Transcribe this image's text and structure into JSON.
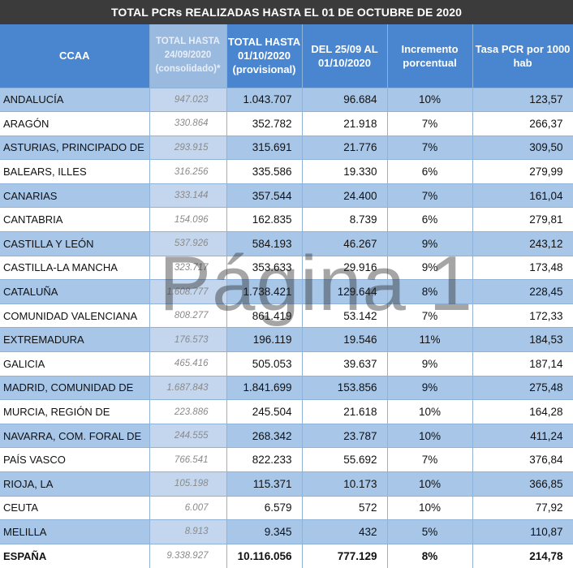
{
  "title": "TOTAL PCRs REALIZADAS HASTA EL 01 DE OCTUBRE DE 2020",
  "headers": {
    "ccaa": "CCAA",
    "consolidado": [
      "TOTAL HASTA",
      "24/09/2020",
      "(consolidado)*"
    ],
    "provisional": [
      "TOTAL  HASTA",
      "01/10/2020",
      "(provisional)"
    ],
    "periodo": [
      "DEL 25/09 AL",
      "01/10/2020"
    ],
    "incremento": [
      "Incremento",
      "porcentual"
    ],
    "tasa": [
      "Tasa PCR por 1000",
      "hab"
    ]
  },
  "rows": [
    {
      "ccaa": "ANDALUCÍA",
      "consolidado": "947.023",
      "provisional": "1.043.707",
      "periodo": "96.684",
      "incremento": "10%",
      "tasa": "123,57"
    },
    {
      "ccaa": "ARAGÓN",
      "consolidado": "330.864",
      "provisional": "352.782",
      "periodo": "21.918",
      "incremento": "7%",
      "tasa": "266,37"
    },
    {
      "ccaa": "ASTURIAS, PRINCIPADO DE",
      "consolidado": "293.915",
      "provisional": "315.691",
      "periodo": "21.776",
      "incremento": "7%",
      "tasa": "309,50"
    },
    {
      "ccaa": "BALEARS, ILLES",
      "consolidado": "316.256",
      "provisional": "335.586",
      "periodo": "19.330",
      "incremento": "6%",
      "tasa": "279,99"
    },
    {
      "ccaa": "CANARIAS",
      "consolidado": "333.144",
      "provisional": "357.544",
      "periodo": "24.400",
      "incremento": "7%",
      "tasa": "161,04"
    },
    {
      "ccaa": "CANTABRIA",
      "consolidado": "154.096",
      "provisional": "162.835",
      "periodo": "8.739",
      "incremento": "6%",
      "tasa": "279,81"
    },
    {
      "ccaa": "CASTILLA Y LEÓN",
      "consolidado": "537.926",
      "provisional": "584.193",
      "periodo": "46.267",
      "incremento": "9%",
      "tasa": "243,12"
    },
    {
      "ccaa": "CASTILLA-LA MANCHA",
      "consolidado": "323.717",
      "provisional": "353.633",
      "periodo": "29.916",
      "incremento": "9%",
      "tasa": "173,48"
    },
    {
      "ccaa": "CATALUÑA",
      "consolidado": "1.608.777",
      "provisional": "1.738.421",
      "periodo": "129.644",
      "incremento": "8%",
      "tasa": "228,45"
    },
    {
      "ccaa": "COMUNIDAD VALENCIANA",
      "consolidado": "808.277",
      "provisional": "861.419",
      "periodo": "53.142",
      "incremento": "7%",
      "tasa": "172,33"
    },
    {
      "ccaa": "EXTREMADURA",
      "consolidado": "176.573",
      "provisional": "196.119",
      "periodo": "19.546",
      "incremento": "11%",
      "tasa": "184,53"
    },
    {
      "ccaa": "GALICIA",
      "consolidado": "465.416",
      "provisional": "505.053",
      "periodo": "39.637",
      "incremento": "9%",
      "tasa": "187,14"
    },
    {
      "ccaa": "MADRID, COMUNIDAD DE",
      "consolidado": "1.687.843",
      "provisional": "1.841.699",
      "periodo": "153.856",
      "incremento": "9%",
      "tasa": "275,48"
    },
    {
      "ccaa": "MURCIA, REGIÓN DE",
      "consolidado": "223.886",
      "provisional": "245.504",
      "periodo": "21.618",
      "incremento": "10%",
      "tasa": "164,28"
    },
    {
      "ccaa": "NAVARRA, COM. FORAL DE",
      "consolidado": "244.555",
      "provisional": "268.342",
      "periodo": "23.787",
      "incremento": "10%",
      "tasa": "411,24"
    },
    {
      "ccaa": "PAÍS VASCO",
      "consolidado": "766.541",
      "provisional": "822.233",
      "periodo": "55.692",
      "incremento": "7%",
      "tasa": "376,84"
    },
    {
      "ccaa": "RIOJA, LA",
      "consolidado": "105.198",
      "provisional": "115.371",
      "periodo": "10.173",
      "incremento": "10%",
      "tasa": "366,85"
    },
    {
      "ccaa": "CEUTA",
      "consolidado": "6.007",
      "provisional": "6.579",
      "periodo": "572",
      "incremento": "10%",
      "tasa": "77,92"
    },
    {
      "ccaa": "MELILLA",
      "consolidado": "8.913",
      "provisional": "9.345",
      "periodo": "432",
      "incremento": "5%",
      "tasa": "110,87"
    }
  ],
  "total": {
    "ccaa": "ESPAÑA",
    "consolidado": "9.338.927",
    "provisional": "10.116.056",
    "periodo": "777.129",
    "incremento": "8%",
    "tasa": "214,78"
  },
  "watermark": "Página 1"
}
